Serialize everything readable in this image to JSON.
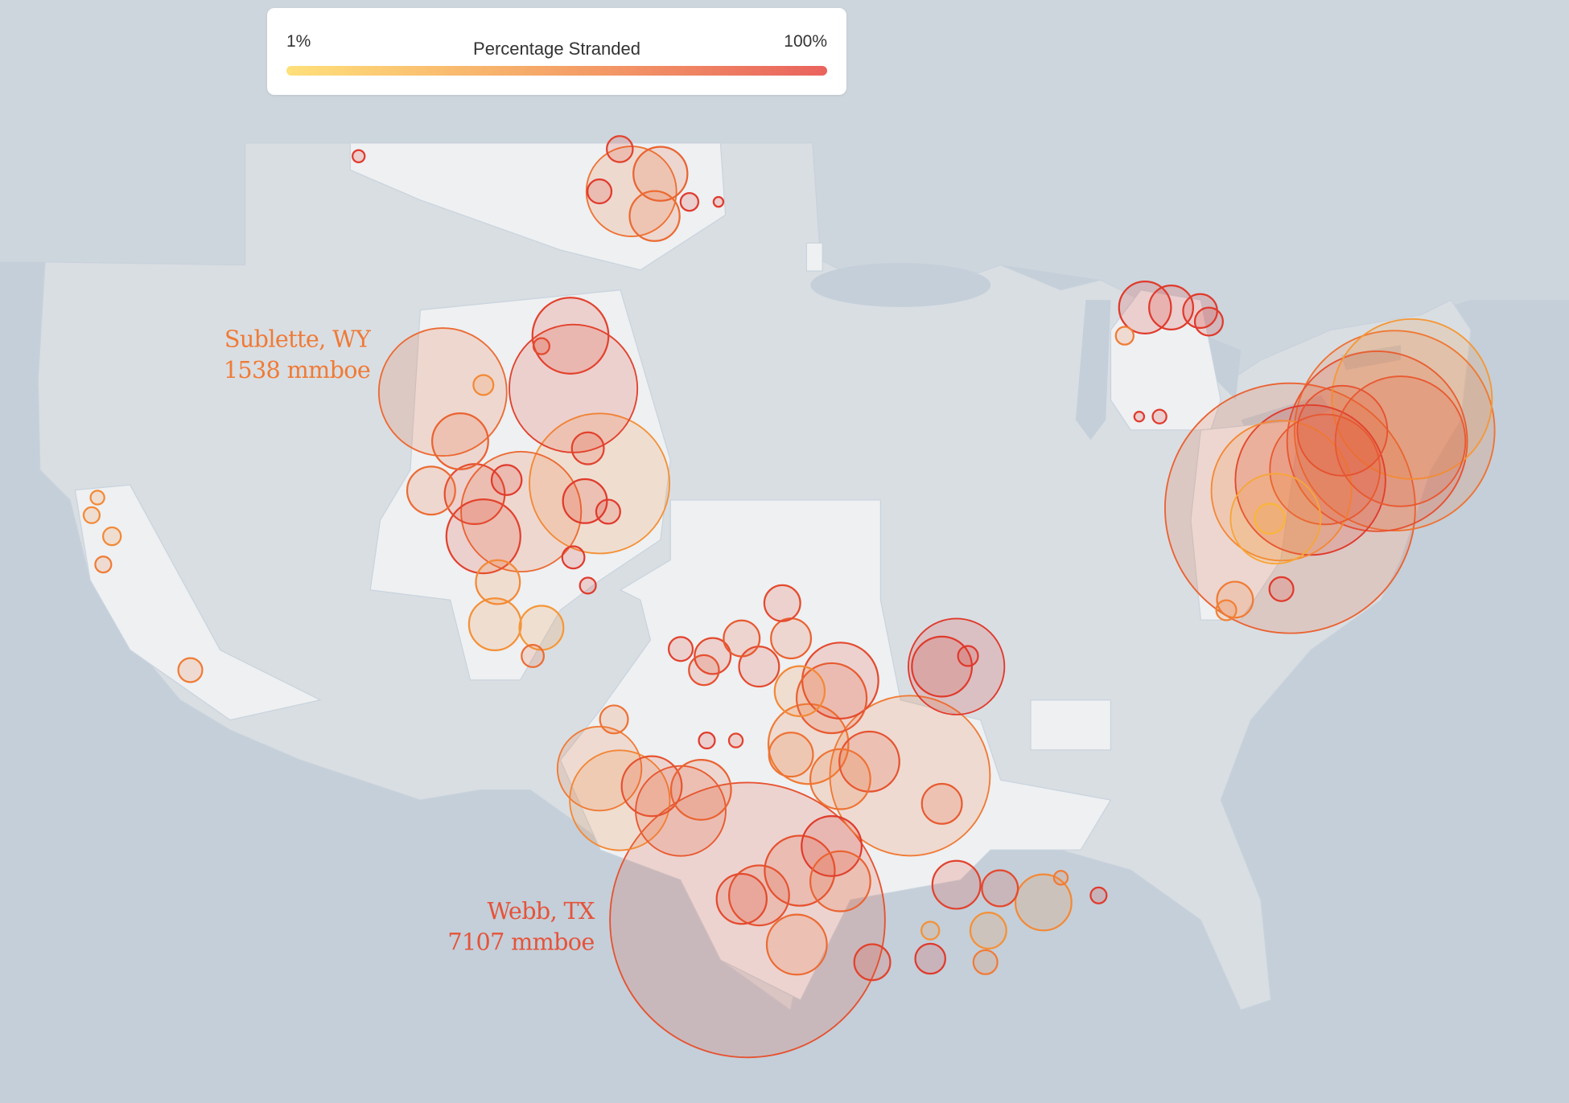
{
  "legend": {
    "title": "Percentage Stranded",
    "min_label": "1%",
    "max_label": "100%",
    "color_low": "#ffe07a",
    "color_mid": "#f5a468",
    "color_high": "#e9635d"
  },
  "colors": {
    "ocean": "#c4cfd9",
    "land": "#d9dee3",
    "counties": "#eef0f2",
    "stroke_low": "#fcc23a",
    "stroke_mid": "#f07a35",
    "stroke_high": "#dc2a2a"
  },
  "annotations": [
    {
      "name": "Sublette, WY",
      "value": "1538 mmboe",
      "color": "#f07a35"
    },
    {
      "name": "Webb, TX",
      "value": "7107 mmboe",
      "color": "#e6533a"
    }
  ],
  "size_metric": "mmboe",
  "bubbles": [
    {
      "lon": -99.5,
      "lat": 27.8,
      "mmboe": 7107,
      "pct": 75
    },
    {
      "lon": -110.0,
      "lat": 42.8,
      "mmboe": 1538,
      "pct": 60
    },
    {
      "lon": -105.5,
      "lat": 42.9,
      "mmboe": 1541,
      "pct": 85
    },
    {
      "lon": -105.6,
      "lat": 44.4,
      "mmboe": 543,
      "pct": 85
    },
    {
      "lon": -109.4,
      "lat": 41.4,
      "mmboe": 295,
      "pct": 65
    },
    {
      "lon": -110.4,
      "lat": 40.0,
      "mmboe": 217,
      "pct": 60
    },
    {
      "lon": -107.8,
      "lat": 40.3,
      "mmboe": 85,
      "pct": 90
    },
    {
      "lon": -104.6,
      "lat": 40.2,
      "mmboe": 1844,
      "pct": 35
    },
    {
      "lon": -107.3,
      "lat": 39.4,
      "mmboe": 1355,
      "pct": 60
    },
    {
      "lon": -108.6,
      "lat": 38.7,
      "mmboe": 515,
      "pct": 85
    },
    {
      "lon": -108.9,
      "lat": 39.9,
      "mmboe": 339,
      "pct": 80
    },
    {
      "lon": -105.1,
      "lat": 39.7,
      "mmboe": 182,
      "pct": 90
    },
    {
      "lon": -104.3,
      "lat": 39.4,
      "mmboe": 54,
      "pct": 90
    },
    {
      "lon": -105.0,
      "lat": 41.2,
      "mmboe": 96,
      "pct": 85
    },
    {
      "lon": -108.1,
      "lat": 37.4,
      "mmboe": 182,
      "pct": 40
    },
    {
      "lon": -108.2,
      "lat": 36.2,
      "mmboe": 254,
      "pct": 35
    },
    {
      "lon": -106.6,
      "lat": 36.1,
      "mmboe": 182,
      "pct": 30
    },
    {
      "lon": -106.9,
      "lat": 35.3,
      "mmboe": 46,
      "pct": 60
    },
    {
      "lon": -105.5,
      "lat": 38.1,
      "mmboe": 46,
      "pct": 90
    },
    {
      "lon": -105.0,
      "lat": 37.3,
      "mmboe": 24,
      "pct": 90
    },
    {
      "lon": -108.6,
      "lat": 43.0,
      "mmboe": 38,
      "pct": 40
    },
    {
      "lon": -106.6,
      "lat": 44.1,
      "mmboe": 24,
      "pct": 80
    },
    {
      "lon": -103.5,
      "lat": 48.5,
      "mmboe": 762,
      "pct": 55
    },
    {
      "lon": -103.9,
      "lat": 49.7,
      "mmboe": 64,
      "pct": 85
    },
    {
      "lon": -102.5,
      "lat": 49.0,
      "mmboe": 274,
      "pct": 65
    },
    {
      "lon": -102.7,
      "lat": 47.8,
      "mmboe": 235,
      "pct": 60
    },
    {
      "lon": -104.6,
      "lat": 48.5,
      "mmboe": 54,
      "pct": 90
    },
    {
      "lon": -101.5,
      "lat": 48.2,
      "mmboe": 30,
      "pct": 90
    },
    {
      "lon": -112.9,
      "lat": 49.5,
      "mmboe": 14,
      "pct": 90
    },
    {
      "lon": -100.5,
      "lat": 48.2,
      "mmboe": 9,
      "pct": 90
    },
    {
      "lon": -118.7,
      "lat": 34.9,
      "mmboe": 54,
      "pct": 50
    },
    {
      "lon": -121.9,
      "lat": 39.8,
      "mmboe": 18,
      "pct": 40
    },
    {
      "lon": -122.1,
      "lat": 39.3,
      "mmboe": 24,
      "pct": 40
    },
    {
      "lon": -121.4,
      "lat": 38.7,
      "mmboe": 30,
      "pct": 40
    },
    {
      "lon": -121.7,
      "lat": 37.9,
      "mmboe": 24,
      "pct": 50
    },
    {
      "lon": -96.3,
      "lat": 34.6,
      "mmboe": 543,
      "pct": 80
    },
    {
      "lon": -98.3,
      "lat": 36.8,
      "mmboe": 122,
      "pct": 80
    },
    {
      "lon": -99.1,
      "lat": 35.0,
      "mmboe": 150,
      "pct": 80
    },
    {
      "lon": -100.7,
      "lat": 35.3,
      "mmboe": 122,
      "pct": 80
    },
    {
      "lon": -101.8,
      "lat": 35.5,
      "mmboe": 54,
      "pct": 85
    },
    {
      "lon": -98.0,
      "lat": 35.8,
      "mmboe": 150,
      "pct": 65
    },
    {
      "lon": -97.7,
      "lat": 34.3,
      "mmboe": 235,
      "pct": 40
    },
    {
      "lon": -99.7,
      "lat": 35.8,
      "mmboe": 122,
      "pct": 70
    },
    {
      "lon": -101.0,
      "lat": 34.9,
      "mmboe": 85,
      "pct": 75
    },
    {
      "lon": -92.3,
      "lat": 35.0,
      "mmboe": 867,
      "pct": 90
    },
    {
      "lon": -92.8,
      "lat": 35.0,
      "mmboe": 339,
      "pct": 90
    },
    {
      "lon": -91.9,
      "lat": 35.3,
      "mmboe": 38,
      "pct": 90
    },
    {
      "lon": -93.9,
      "lat": 31.9,
      "mmboe": 2409,
      "pct": 50
    },
    {
      "lon": -95.3,
      "lat": 32.3,
      "mmboe": 339,
      "pct": 75
    },
    {
      "lon": -92.8,
      "lat": 31.1,
      "mmboe": 150,
      "pct": 70
    },
    {
      "lon": -96.3,
      "lat": 31.8,
      "mmboe": 339,
      "pct": 55
    },
    {
      "lon": -97.4,
      "lat": 32.8,
      "mmboe": 602,
      "pct": 50
    },
    {
      "lon": -98.0,
      "lat": 32.5,
      "mmboe": 182,
      "pct": 55
    },
    {
      "lon": -96.6,
      "lat": 34.1,
      "mmboe": 461,
      "pct": 70
    },
    {
      "lon": -104.6,
      "lat": 32.1,
      "mmboe": 664,
      "pct": 50
    },
    {
      "lon": -103.9,
      "lat": 31.2,
      "mmboe": 941,
      "pct": 40
    },
    {
      "lon": -101.8,
      "lat": 30.9,
      "mmboe": 762,
      "pct": 70
    },
    {
      "lon": -102.8,
      "lat": 31.6,
      "mmboe": 339,
      "pct": 75
    },
    {
      "lon": -101.1,
      "lat": 31.5,
      "mmboe": 339,
      "pct": 65
    },
    {
      "lon": -104.1,
      "lat": 33.5,
      "mmboe": 74,
      "pct": 55
    },
    {
      "lon": -100.9,
      "lat": 32.9,
      "mmboe": 24,
      "pct": 90
    },
    {
      "lon": -99.9,
      "lat": 32.9,
      "mmboe": 18,
      "pct": 85
    },
    {
      "lon": -96.6,
      "lat": 29.9,
      "mmboe": 339,
      "pct": 90
    },
    {
      "lon": -97.7,
      "lat": 29.2,
      "mmboe": 461,
      "pct": 75
    },
    {
      "lon": -99.1,
      "lat": 28.5,
      "mmboe": 339,
      "pct": 75
    },
    {
      "lon": -99.7,
      "lat": 28.4,
      "mmboe": 235,
      "pct": 80
    },
    {
      "lon": -97.8,
      "lat": 27.1,
      "mmboe": 339,
      "pct": 60
    },
    {
      "lon": -96.3,
      "lat": 28.9,
      "mmboe": 339,
      "pct": 65
    },
    {
      "lon": -92.3,
      "lat": 28.8,
      "mmboe": 217,
      "pct": 85
    },
    {
      "lon": -89.3,
      "lat": 28.3,
      "mmboe": 295,
      "pct": 40
    },
    {
      "lon": -91.2,
      "lat": 27.5,
      "mmboe": 122,
      "pct": 35
    },
    {
      "lon": -93.2,
      "lat": 26.7,
      "mmboe": 85,
      "pct": 90
    },
    {
      "lon": -95.2,
      "lat": 26.6,
      "mmboe": 122,
      "pct": 85
    },
    {
      "lon": -91.3,
      "lat": 26.6,
      "mmboe": 54,
      "pct": 50
    },
    {
      "lon": -90.8,
      "lat": 28.7,
      "mmboe": 122,
      "pct": 80
    },
    {
      "lon": -87.4,
      "lat": 28.5,
      "mmboe": 24,
      "pct": 90
    },
    {
      "lon": -88.7,
      "lat": 29.0,
      "mmboe": 18,
      "pct": 50
    },
    {
      "lon": -93.2,
      "lat": 27.5,
      "mmboe": 30,
      "pct": 35
    },
    {
      "lon": -85.8,
      "lat": 45.2,
      "mmboe": 254,
      "pct": 90
    },
    {
      "lon": -84.9,
      "lat": 45.2,
      "mmboe": 182,
      "pct": 90
    },
    {
      "lon": -83.9,
      "lat": 45.1,
      "mmboe": 109,
      "pct": 90
    },
    {
      "lon": -83.6,
      "lat": 44.8,
      "mmboe": 74,
      "pct": 90
    },
    {
      "lon": -86.5,
      "lat": 44.4,
      "mmboe": 30,
      "pct": 50
    },
    {
      "lon": -85.3,
      "lat": 42.1,
      "mmboe": 18,
      "pct": 90
    },
    {
      "lon": -86.0,
      "lat": 42.1,
      "mmboe": 9,
      "pct": 90
    },
    {
      "lon": -80.8,
      "lat": 39.5,
      "mmboe": 5881,
      "pct": 65
    },
    {
      "lon": -77.2,
      "lat": 41.7,
      "mmboe": 3764,
      "pct": 55
    },
    {
      "lon": -77.8,
      "lat": 41.4,
      "mmboe": 3048,
      "pct": 75
    },
    {
      "lon": -76.6,
      "lat": 42.6,
      "mmboe": 2409,
      "pct": 30
    },
    {
      "lon": -80.1,
      "lat": 40.3,
      "mmboe": 2117,
      "pct": 90
    },
    {
      "lon": -81.1,
      "lat": 40.0,
      "mmboe": 1844,
      "pct": 40
    },
    {
      "lon": -79.6,
      "lat": 40.6,
      "mmboe": 1139,
      "pct": 70
    },
    {
      "lon": -77.0,
      "lat": 41.4,
      "mmboe": 1590,
      "pct": 70
    },
    {
      "lon": -79.0,
      "lat": 41.7,
      "mmboe": 762,
      "pct": 75
    },
    {
      "lon": -81.3,
      "lat": 39.2,
      "mmboe": 762,
      "pct": 20
    },
    {
      "lon": -81.5,
      "lat": 39.2,
      "mmboe": 85,
      "pct": 10
    },
    {
      "lon": -81.1,
      "lat": 37.2,
      "mmboe": 54,
      "pct": 90
    },
    {
      "lon": -82.7,
      "lat": 36.9,
      "mmboe": 122,
      "pct": 50
    },
    {
      "lon": -83.0,
      "lat": 36.6,
      "mmboe": 38,
      "pct": 45
    }
  ]
}
